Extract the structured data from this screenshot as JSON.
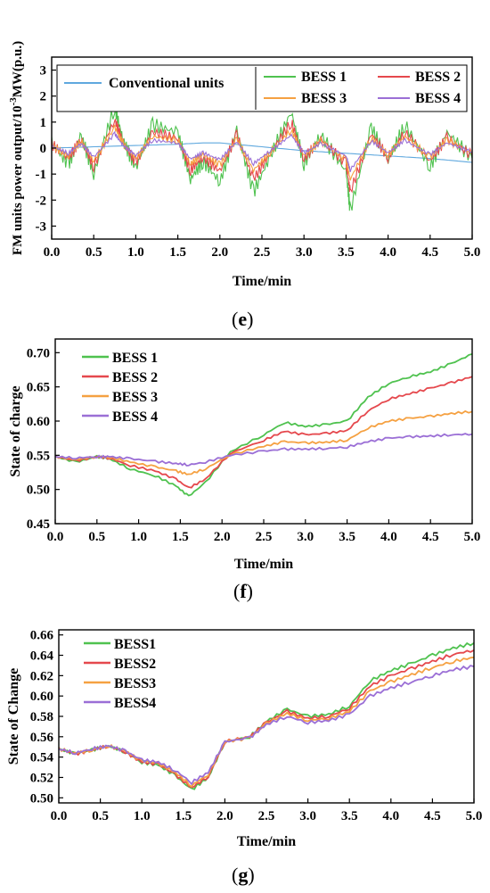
{
  "panels": {
    "e": {
      "label_open": "(",
      "label_letter": "e",
      "label_close": ")"
    },
    "f": {
      "label_open": "(",
      "label_letter": "f",
      "label_close": ")"
    },
    "g": {
      "label_open": "(",
      "label_letter": "g",
      "label_close": ")"
    }
  },
  "chart_data": [
    {
      "type": "line",
      "panel": "e",
      "xlabel": "Time/min",
      "ylabel_parts": [
        "FM units power output/10",
        "-3",
        "MW(p.u.)"
      ],
      "xlim": [
        0,
        5.0
      ],
      "ylim": [
        -3.5,
        3.5
      ],
      "xticks": [
        "0.0",
        "0.5",
        "1.0",
        "1.5",
        "2.0",
        "2.5",
        "3.0",
        "3.5",
        "4.0",
        "4.5",
        "5.0"
      ],
      "yticks": [
        "-3",
        "-2",
        "-1",
        "0",
        "1",
        "2",
        "3"
      ],
      "legend_placement": "top",
      "series": [
        {
          "name": "Conventional units",
          "color": "#5fa8de",
          "x": [
            0,
            0.5,
            1.0,
            1.5,
            1.8,
            2.0,
            2.5,
            3.0,
            3.5,
            4.0,
            4.5,
            5.0
          ],
          "y": [
            0.0,
            0.05,
            0.1,
            0.15,
            0.2,
            0.2,
            0.05,
            -0.1,
            -0.2,
            -0.3,
            -0.4,
            -0.55
          ]
        },
        {
          "name": "BESS 1",
          "color": "#4fc24f",
          "x": [
            0,
            0.2,
            0.35,
            0.5,
            0.75,
            0.85,
            1.0,
            1.2,
            1.5,
            1.65,
            1.8,
            2.0,
            2.2,
            2.4,
            2.6,
            2.85,
            3.0,
            3.2,
            3.5,
            3.55,
            3.8,
            4.0,
            4.2,
            4.5,
            4.7,
            5.0
          ],
          "y": [
            0.2,
            -0.6,
            0.5,
            -1.0,
            1.6,
            0.3,
            -0.8,
            0.9,
            0.6,
            -1.2,
            -0.5,
            -1.3,
            0.7,
            -1.7,
            -0.3,
            1.4,
            -0.6,
            0.5,
            -0.9,
            -2.4,
            0.8,
            -0.5,
            0.9,
            -0.7,
            0.6,
            -0.4
          ]
        },
        {
          "name": "BESS 2",
          "color": "#e5484d",
          "x": [
            0,
            0.2,
            0.35,
            0.5,
            0.75,
            0.85,
            1.0,
            1.2,
            1.5,
            1.65,
            1.8,
            2.0,
            2.2,
            2.4,
            2.6,
            2.85,
            3.0,
            3.2,
            3.5,
            3.55,
            3.8,
            4.0,
            4.2,
            4.5,
            4.7,
            5.0
          ],
          "y": [
            0.15,
            -0.4,
            0.35,
            -0.7,
            1.1,
            0.2,
            -0.55,
            0.6,
            0.4,
            -0.85,
            -0.35,
            -0.9,
            0.5,
            -1.2,
            -0.2,
            1.0,
            -0.4,
            0.35,
            -0.6,
            -1.7,
            0.55,
            -0.35,
            0.6,
            -0.5,
            0.4,
            -0.3
          ]
        },
        {
          "name": "BESS 3",
          "color": "#f5a142",
          "x": [
            0,
            0.2,
            0.35,
            0.5,
            0.75,
            0.85,
            1.0,
            1.2,
            1.5,
            1.65,
            1.8,
            2.0,
            2.2,
            2.4,
            2.6,
            2.85,
            3.0,
            3.2,
            3.5,
            3.55,
            3.8,
            4.0,
            4.2,
            4.5,
            4.7,
            5.0
          ],
          "y": [
            0.1,
            -0.3,
            0.25,
            -0.5,
            0.8,
            0.15,
            -0.4,
            0.45,
            0.3,
            -0.6,
            -0.25,
            -0.65,
            0.35,
            -0.85,
            -0.15,
            0.7,
            -0.3,
            0.25,
            -0.45,
            -1.2,
            0.4,
            -0.25,
            0.45,
            -0.35,
            0.3,
            -0.2
          ]
        },
        {
          "name": "BESS 4",
          "color": "#9b6fd6",
          "x": [
            0,
            0.2,
            0.35,
            0.5,
            0.75,
            0.85,
            1.0,
            1.2,
            1.5,
            1.65,
            1.8,
            2.0,
            2.2,
            2.4,
            2.6,
            2.85,
            3.0,
            3.2,
            3.5,
            3.55,
            3.8,
            4.0,
            4.2,
            4.5,
            4.7,
            5.0
          ],
          "y": [
            0.08,
            -0.2,
            0.18,
            -0.35,
            0.55,
            0.1,
            -0.28,
            0.3,
            0.2,
            -0.42,
            -0.18,
            -0.45,
            0.25,
            -0.6,
            -0.1,
            0.5,
            -0.2,
            0.18,
            -0.3,
            -0.85,
            0.28,
            -0.18,
            0.3,
            -0.25,
            0.2,
            -0.15
          ]
        }
      ]
    },
    {
      "type": "line",
      "panel": "f",
      "xlabel": "Time/min",
      "ylabel": "State of charge",
      "xlim": [
        0,
        5.0
      ],
      "ylim": [
        0.45,
        0.72
      ],
      "xticks": [
        "0.0",
        "0.5",
        "1.0",
        "1.5",
        "2.0",
        "2.5",
        "3.0",
        "3.5",
        "4.0",
        "4.5",
        "5.0"
      ],
      "yticks": [
        "0.45",
        "0.50",
        "0.55",
        "0.60",
        "0.65",
        "0.70"
      ],
      "legend_placement": "top-left",
      "series": [
        {
          "name": "BESS 1",
          "color": "#4fc24f",
          "x": [
            0,
            0.25,
            0.5,
            0.65,
            0.9,
            1.2,
            1.45,
            1.6,
            1.8,
            2.1,
            2.5,
            2.75,
            3.0,
            3.25,
            3.5,
            3.75,
            4.0,
            4.25,
            4.5,
            4.75,
            5.0
          ],
          "y": [
            0.548,
            0.54,
            0.548,
            0.545,
            0.53,
            0.52,
            0.505,
            0.49,
            0.51,
            0.555,
            0.58,
            0.598,
            0.592,
            0.595,
            0.6,
            0.635,
            0.655,
            0.665,
            0.672,
            0.684,
            0.698
          ]
        },
        {
          "name": "BESS 2",
          "color": "#e5484d",
          "x": [
            0,
            0.25,
            0.5,
            0.65,
            0.9,
            1.2,
            1.45,
            1.6,
            1.8,
            2.1,
            2.5,
            2.75,
            3.0,
            3.25,
            3.5,
            3.75,
            4.0,
            4.25,
            4.5,
            4.75,
            5.0
          ],
          "y": [
            0.548,
            0.542,
            0.548,
            0.546,
            0.535,
            0.527,
            0.515,
            0.502,
            0.515,
            0.553,
            0.572,
            0.585,
            0.58,
            0.582,
            0.586,
            0.615,
            0.632,
            0.64,
            0.648,
            0.656,
            0.665
          ]
        },
        {
          "name": "BESS 3",
          "color": "#f5a142",
          "x": [
            0,
            0.25,
            0.5,
            0.65,
            0.9,
            1.2,
            1.45,
            1.6,
            1.8,
            2.1,
            2.5,
            2.75,
            3.0,
            3.25,
            3.5,
            3.75,
            4.0,
            4.25,
            4.5,
            4.75,
            5.0
          ],
          "y": [
            0.548,
            0.544,
            0.548,
            0.547,
            0.54,
            0.533,
            0.527,
            0.522,
            0.53,
            0.551,
            0.563,
            0.57,
            0.568,
            0.569,
            0.572,
            0.59,
            0.6,
            0.604,
            0.607,
            0.611,
            0.614
          ]
        },
        {
          "name": "BESS 4",
          "color": "#9b6fd6",
          "x": [
            0,
            0.25,
            0.5,
            0.65,
            0.9,
            1.2,
            1.45,
            1.6,
            1.8,
            2.1,
            2.5,
            2.75,
            3.0,
            3.25,
            3.5,
            3.75,
            4.0,
            4.25,
            4.5,
            4.75,
            5.0
          ],
          "y": [
            0.548,
            0.546,
            0.548,
            0.548,
            0.545,
            0.541,
            0.538,
            0.536,
            0.54,
            0.55,
            0.556,
            0.559,
            0.559,
            0.56,
            0.562,
            0.57,
            0.575,
            0.577,
            0.578,
            0.58,
            0.581
          ]
        }
      ]
    },
    {
      "type": "line",
      "panel": "g",
      "xlabel": "Time/min",
      "ylabel": "State of Change",
      "xlim": [
        0,
        5.0
      ],
      "ylim": [
        0.495,
        0.665
      ],
      "xticks": [
        "0.0",
        "0.5",
        "1.0",
        "1.5",
        "2.0",
        "2.5",
        "3.0",
        "3.5",
        "4.0",
        "4.5",
        "5.0"
      ],
      "yticks": [
        "0.50",
        "0.52",
        "0.54",
        "0.56",
        "0.58",
        "0.60",
        "0.62",
        "0.64",
        "0.66"
      ],
      "legend_placement": "top-left",
      "series": [
        {
          "name": "BESS1",
          "color": "#4fc24f",
          "x": [
            0,
            0.2,
            0.4,
            0.6,
            0.8,
            1.0,
            1.2,
            1.4,
            1.6,
            1.8,
            2.0,
            2.3,
            2.5,
            2.75,
            3.0,
            3.25,
            3.5,
            3.75,
            4.0,
            4.25,
            4.5,
            4.75,
            5.0
          ],
          "y": [
            0.548,
            0.543,
            0.547,
            0.551,
            0.545,
            0.535,
            0.532,
            0.522,
            0.508,
            0.52,
            0.555,
            0.56,
            0.575,
            0.587,
            0.58,
            0.582,
            0.59,
            0.615,
            0.625,
            0.632,
            0.64,
            0.647,
            0.652
          ]
        },
        {
          "name": "BESS2",
          "color": "#e5484d",
          "x": [
            0,
            0.2,
            0.4,
            0.6,
            0.8,
            1.0,
            1.2,
            1.4,
            1.6,
            1.8,
            2.0,
            2.3,
            2.5,
            2.75,
            3.0,
            3.25,
            3.5,
            3.75,
            4.0,
            4.25,
            4.5,
            4.75,
            5.0
          ],
          "y": [
            0.548,
            0.543,
            0.547,
            0.551,
            0.545,
            0.535,
            0.533,
            0.523,
            0.51,
            0.521,
            0.555,
            0.56,
            0.574,
            0.585,
            0.578,
            0.58,
            0.588,
            0.61,
            0.62,
            0.627,
            0.634,
            0.641,
            0.645
          ]
        },
        {
          "name": "BESS3",
          "color": "#f5a142",
          "x": [
            0,
            0.2,
            0.4,
            0.6,
            0.8,
            1.0,
            1.2,
            1.4,
            1.6,
            1.8,
            2.0,
            2.3,
            2.5,
            2.75,
            3.0,
            3.25,
            3.5,
            3.75,
            4.0,
            4.25,
            4.5,
            4.75,
            5.0
          ],
          "y": [
            0.548,
            0.544,
            0.547,
            0.551,
            0.546,
            0.536,
            0.534,
            0.525,
            0.512,
            0.523,
            0.555,
            0.559,
            0.573,
            0.583,
            0.576,
            0.578,
            0.585,
            0.605,
            0.614,
            0.621,
            0.628,
            0.634,
            0.638
          ]
        },
        {
          "name": "BESS4",
          "color": "#9b6fd6",
          "x": [
            0,
            0.2,
            0.4,
            0.6,
            0.8,
            1.0,
            1.2,
            1.4,
            1.6,
            1.8,
            2.0,
            2.3,
            2.5,
            2.75,
            3.0,
            3.25,
            3.5,
            3.75,
            4.0,
            4.25,
            4.5,
            4.75,
            5.0
          ],
          "y": [
            0.548,
            0.544,
            0.548,
            0.551,
            0.546,
            0.537,
            0.535,
            0.527,
            0.515,
            0.525,
            0.555,
            0.559,
            0.572,
            0.58,
            0.574,
            0.576,
            0.582,
            0.6,
            0.608,
            0.614,
            0.62,
            0.626,
            0.629
          ]
        }
      ]
    }
  ]
}
